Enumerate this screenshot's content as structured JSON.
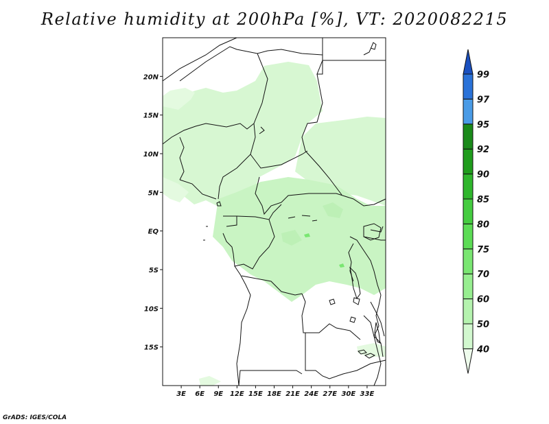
{
  "title": "Relative humidity at 200hPa [%], VT: 2020082215",
  "credit": "GrADS: IGES/COLA",
  "map": {
    "lon_range": [
      0,
      36
    ],
    "lat_range": [
      -20,
      25
    ],
    "lon_ticks": [
      {
        "value": 3,
        "label": "3E"
      },
      {
        "value": 6,
        "label": "6E"
      },
      {
        "value": 9,
        "label": "9E"
      },
      {
        "value": 12,
        "label": "12E"
      },
      {
        "value": 15,
        "label": "15E"
      },
      {
        "value": 18,
        "label": "18E"
      },
      {
        "value": 21,
        "label": "21E"
      },
      {
        "value": 24,
        "label": "24E"
      },
      {
        "value": 27,
        "label": "27E"
      },
      {
        "value": 30,
        "label": "30E"
      },
      {
        "value": 33,
        "label": "33E"
      }
    ],
    "lat_ticks": [
      {
        "value": 20,
        "label": "20N"
      },
      {
        "value": 15,
        "label": "15N"
      },
      {
        "value": 10,
        "label": "10N"
      },
      {
        "value": 5,
        "label": "5N"
      },
      {
        "value": 0,
        "label": "EQ"
      },
      {
        "value": -5,
        "label": "5S"
      },
      {
        "value": -10,
        "label": "10S"
      },
      {
        "value": -15,
        "label": "15S"
      }
    ]
  },
  "colorbar": {
    "levels": [
      "40",
      "50",
      "60",
      "70",
      "75",
      "80",
      "85",
      "90",
      "92",
      "95",
      "97",
      "99"
    ],
    "colors": [
      "#eefcec",
      "#d2f8cf",
      "#b5f3af",
      "#97ee90",
      "#7ae672",
      "#5cdc55",
      "#45cc40",
      "#2fb62c",
      "#1f9c1c",
      "#1a8a1a",
      "#4a9be6",
      "#2a72d8",
      "#1a50c0"
    ]
  }
}
